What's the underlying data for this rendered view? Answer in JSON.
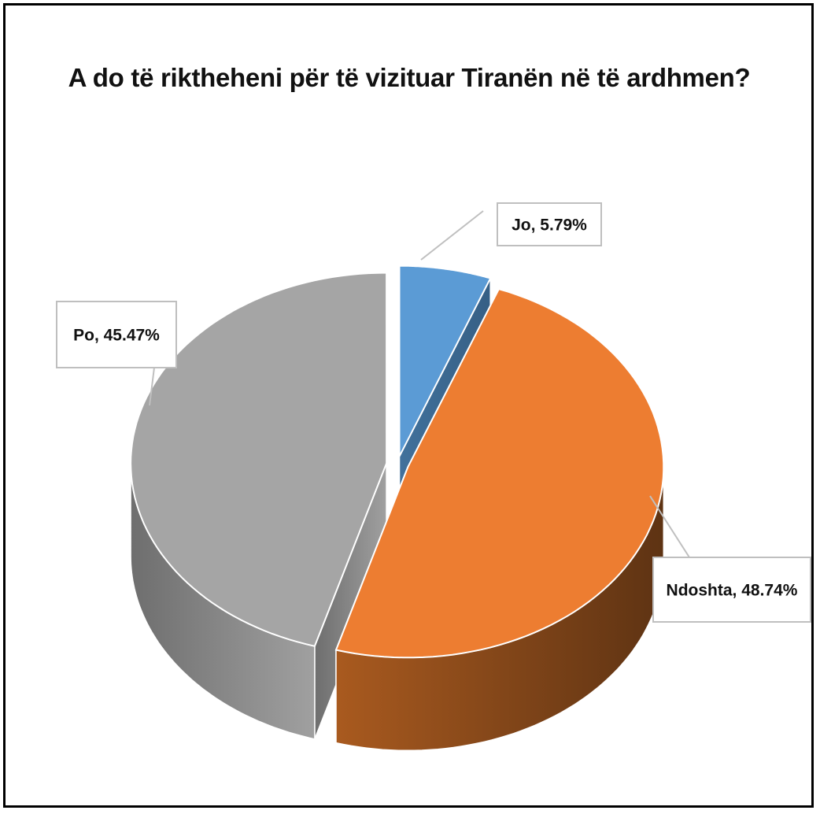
{
  "chart_data": {
    "type": "pie",
    "title": "A do të riktheheni për të vizituar Tiranën në të ardhmen?",
    "values": [
      5.79,
      48.74,
      45.47
    ],
    "value_labels": [
      "Jo, 5.79%",
      "Ndoshta, 48.74%",
      "Po, 45.47%"
    ],
    "colors": [
      "#5b9bd5",
      "#ed7d31",
      "#a5a5a5"
    ]
  }
}
